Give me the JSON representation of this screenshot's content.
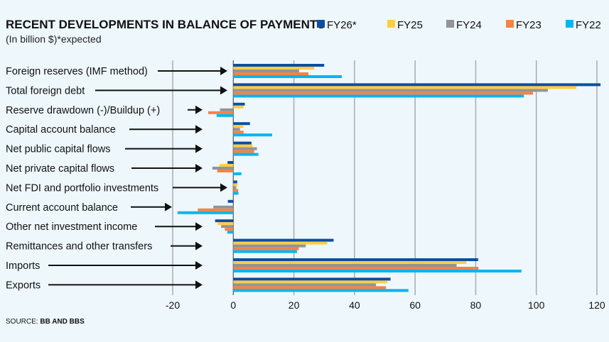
{
  "chart_data": {
    "type": "bar",
    "orientation": "horizontal",
    "title": "RECENT DEVELOPMENTS IN BALANCE OF PAYMENTS",
    "subtitle": "(In billion $)*expected",
    "source_label": "SOURCE:",
    "source": "BB AND BBS",
    "categories": [
      "Foreign reserves (IMF method)",
      "Total foreign debt",
      "Reserve drawdown (-)/Buildup (+)",
      "Capital account balance",
      "Net public capital flows",
      "Net private capital flows",
      "Net FDI and portfolio investments",
      "Current account balance",
      "Other net investment income",
      "Remittances and other transfers",
      "Imports",
      "Exports"
    ],
    "series": [
      {
        "name": "FY26*",
        "color": "#0b4ea2",
        "values": [
          30.0,
          121.2,
          3.8,
          5.5,
          6.0,
          -1.9,
          1.3,
          -1.8,
          -6.0,
          33.1,
          80.8,
          51.9
        ]
      },
      {
        "name": "FY25",
        "color": "#ffcd45",
        "values": [
          26.7,
          113.2,
          3.4,
          3.4,
          6.4,
          -4.6,
          1.4,
          0,
          -5.2,
          31.0,
          76.9,
          50.8
        ]
      },
      {
        "name": "FY24",
        "color": "#929497",
        "values": [
          21.7,
          103.8,
          -4.4,
          2.2,
          7.8,
          -6.9,
          1.0,
          -6.6,
          -4.0,
          23.9,
          73.7,
          47.1
        ]
      },
      {
        "name": "FY23",
        "color": "#f58345",
        "values": [
          24.8,
          98.9,
          -8.3,
          3.4,
          6.9,
          -5.3,
          1.6,
          -11.7,
          -2.8,
          21.6,
          80.9,
          50.4
        ]
      },
      {
        "name": "FY22",
        "color": "#00b6f0",
        "values": [
          35.8,
          95.9,
          -5.5,
          12.8,
          8.3,
          2.7,
          1.7,
          -18.4,
          -2.0,
          21.0,
          95.1,
          57.8
        ]
      }
    ],
    "xlim": [
      -20,
      120
    ],
    "xticks": [
      "-20",
      "0",
      "20",
      "40",
      "60",
      "80",
      "100",
      "120"
    ],
    "grid": true,
    "legend": "top-right"
  }
}
